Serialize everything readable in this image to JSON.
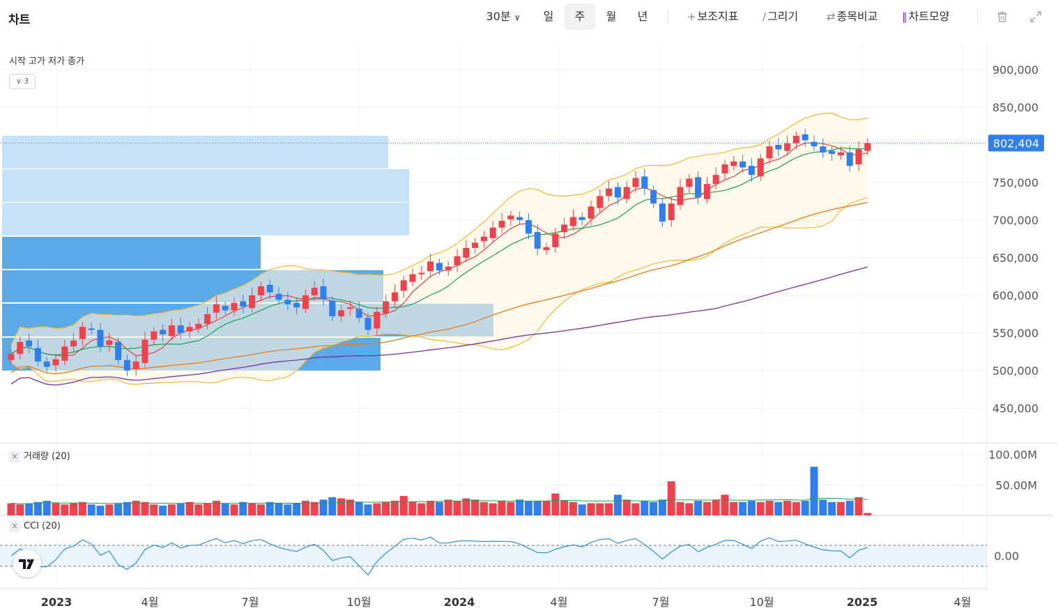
{
  "header": {
    "title": "차트",
    "periods": [
      {
        "label": "30분",
        "has_dropdown": true,
        "active": false
      },
      {
        "label": "일",
        "active": false
      },
      {
        "label": "주",
        "active": true
      },
      {
        "label": "월",
        "active": false
      },
      {
        "label": "년",
        "active": false
      }
    ],
    "tools": [
      {
        "label": "보조지표",
        "icon": "plus-icon"
      },
      {
        "label": "그리기",
        "icon": "pen-icon"
      },
      {
        "label": "종목비교",
        "icon": "swap-icon"
      },
      {
        "label": "차트모양",
        "icon": "candle-icon"
      }
    ],
    "icons": [
      "trash-icon",
      "expand-icon"
    ]
  },
  "price_pane": {
    "ohlc_legend": "시작 고가 저가 종가",
    "collapsed_count": "3",
    "current_price": "802,404",
    "y_ticks": [
      "900,000",
      "850,000",
      "800,000",
      "750,000",
      "700,000",
      "650,000",
      "600,000",
      "550,000",
      "500,000",
      "450,000"
    ]
  },
  "volume_pane": {
    "legend": "거래량 (20)",
    "y_ticks": [
      "100.00M",
      "50.00M"
    ]
  },
  "cci_pane": {
    "legend": "CCI (20)",
    "y_ticks": [
      "0.00"
    ]
  },
  "x_axis": {
    "labels": [
      {
        "label": "2023",
        "bold": true
      },
      {
        "label": "4월",
        "bold": false
      },
      {
        "label": "7월",
        "bold": false
      },
      {
        "label": "10월",
        "bold": false
      },
      {
        "label": "2024",
        "bold": true
      },
      {
        "label": "4월",
        "bold": false
      },
      {
        "label": "7월",
        "bold": false
      },
      {
        "label": "10월",
        "bold": false
      },
      {
        "label": "2025",
        "bold": true
      },
      {
        "label": "4월",
        "bold": false
      }
    ]
  },
  "colors": {
    "up": "#f0414d",
    "down": "#2f7ff0",
    "ma_short": "#16a34a",
    "ma_mid": "#e53e3e",
    "ma_long": "#f07a12",
    "ma_very_long": "#7a2fa8",
    "bollinger": "#f5b82e",
    "volume_profile_dark": "#4aa0e6",
    "volume_profile_light": "#c4e0f6",
    "price_label_bg": "#2f7ff0",
    "cci_line": "#2f8fd8"
  },
  "chart_data": {
    "type": "candlestick",
    "timeframe": "weekly",
    "x_range": [
      "2022-12",
      "2025-04"
    ],
    "price_ylim": [
      420000,
      930000
    ],
    "last_price": 802404,
    "closes": [
      522000,
      538000,
      532000,
      512000,
      505000,
      515000,
      532000,
      540000,
      558000,
      554000,
      532000,
      540000,
      514000,
      500000,
      512000,
      541000,
      552000,
      548000,
      560000,
      550000,
      558000,
      562000,
      575000,
      588000,
      580000,
      590000,
      585000,
      600000,
      612000,
      604000,
      594000,
      588000,
      584000,
      600000,
      610000,
      595000,
      572000,
      580000,
      584000,
      570000,
      554000,
      578000,
      592000,
      604000,
      620000,
      628000,
      630000,
      645000,
      633000,
      638000,
      652000,
      663000,
      670000,
      678000,
      690000,
      699000,
      706000,
      700000,
      682000,
      662000,
      664000,
      682000,
      694000,
      704000,
      700000,
      718000,
      732000,
      742000,
      730000,
      744000,
      756000,
      742000,
      722000,
      698000,
      722000,
      744000,
      755000,
      730000,
      748000,
      760000,
      774000,
      778000,
      770000,
      760000,
      782000,
      798000,
      794000,
      802000,
      812000,
      806000,
      798000,
      790000,
      788000,
      790000,
      772000,
      794000,
      802404
    ],
    "volume_ylim": [
      0,
      110
    ],
    "volumes_m": [
      20,
      18,
      20,
      22,
      24,
      20,
      18,
      20,
      22,
      18,
      16,
      18,
      20,
      22,
      24,
      22,
      18,
      16,
      18,
      20,
      22,
      18,
      20,
      24,
      20,
      18,
      22,
      20,
      18,
      22,
      20,
      18,
      20,
      24,
      22,
      26,
      30,
      28,
      26,
      22,
      18,
      20,
      22,
      24,
      32,
      22,
      20,
      24,
      22,
      26,
      24,
      28,
      26,
      22,
      20,
      24,
      22,
      26,
      24,
      24,
      24,
      36,
      24,
      22,
      18,
      20,
      20,
      20,
      34,
      26,
      20,
      24,
      22,
      26,
      56,
      22,
      20,
      24,
      22,
      26,
      34,
      22,
      22,
      24,
      22,
      24,
      22,
      24,
      22,
      24,
      80,
      26,
      22,
      22,
      24,
      30,
      4
    ],
    "cci_levels": [
      -100,
      0,
      100
    ]
  }
}
